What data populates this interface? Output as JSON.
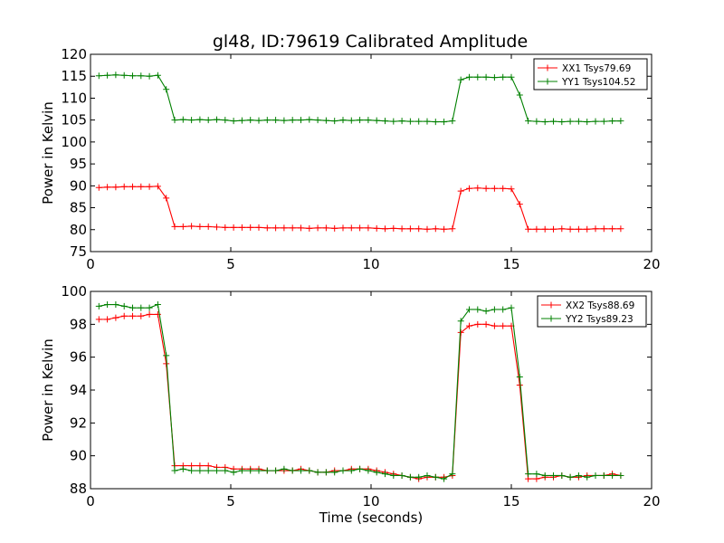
{
  "figure": {
    "title": "gl48, ID:79619 Calibrated Amplitude",
    "xlabel": "Time (seconds)"
  },
  "colors": {
    "red": "#ff0000",
    "green": "#008000"
  },
  "chart_data": [
    {
      "type": "line",
      "ylabel": "Power in Kelvin",
      "xlim": [
        0,
        20
      ],
      "ylim": [
        75,
        120
      ],
      "xticks": [
        0,
        5,
        10,
        15,
        20
      ],
      "yticks": [
        75,
        80,
        85,
        90,
        95,
        100,
        105,
        110,
        115,
        120
      ],
      "grid": false,
      "legend_position": "top-right",
      "x": [
        0.3,
        0.6,
        0.9,
        1.2,
        1.5,
        1.8,
        2.1,
        2.4,
        2.7,
        3.0,
        3.3,
        3.6,
        3.9,
        4.2,
        4.5,
        4.8,
        5.1,
        5.4,
        5.7,
        6.0,
        6.3,
        6.6,
        6.9,
        7.2,
        7.5,
        7.8,
        8.1,
        8.4,
        8.7,
        9.0,
        9.3,
        9.6,
        9.9,
        10.2,
        10.5,
        10.8,
        11.1,
        11.4,
        11.7,
        12.0,
        12.3,
        12.6,
        12.9,
        13.2,
        13.5,
        13.8,
        14.1,
        14.4,
        14.7,
        15.0,
        15.3,
        15.6,
        15.9,
        16.2,
        16.5,
        16.8,
        17.1,
        17.4,
        17.7,
        18.0,
        18.3,
        18.6,
        18.9
      ],
      "series": [
        {
          "name": "XX1 Tsys79.69",
          "color": "#ff0000",
          "values": [
            89.6,
            89.7,
            89.7,
            89.8,
            89.8,
            89.8,
            89.8,
            89.9,
            87.2,
            80.7,
            80.7,
            80.8,
            80.7,
            80.7,
            80.6,
            80.5,
            80.5,
            80.5,
            80.5,
            80.5,
            80.4,
            80.4,
            80.4,
            80.4,
            80.4,
            80.3,
            80.4,
            80.4,
            80.3,
            80.4,
            80.4,
            80.4,
            80.4,
            80.3,
            80.2,
            80.3,
            80.2,
            80.2,
            80.2,
            80.1,
            80.2,
            80.1,
            80.2,
            88.8,
            89.4,
            89.5,
            89.4,
            89.4,
            89.4,
            89.3,
            85.8,
            80.1,
            80.1,
            80.1,
            80.1,
            80.2,
            80.1,
            80.1,
            80.1,
            80.2,
            80.2,
            80.2,
            80.2
          ]
        },
        {
          "name": "YY1 Tsys104.52",
          "color": "#008000",
          "values": [
            115.1,
            115.2,
            115.3,
            115.2,
            115.1,
            115.1,
            115.0,
            115.2,
            112.0,
            105.0,
            105.1,
            105.0,
            105.1,
            105.0,
            105.1,
            105.0,
            104.8,
            104.9,
            105.0,
            104.9,
            105.0,
            105.0,
            104.9,
            105.0,
            105.0,
            105.1,
            105.0,
            104.9,
            104.8,
            105.0,
            104.9,
            105.0,
            105.0,
            104.9,
            104.8,
            104.7,
            104.8,
            104.7,
            104.7,
            104.7,
            104.6,
            104.6,
            104.8,
            114.2,
            114.8,
            114.8,
            114.8,
            114.7,
            114.8,
            114.8,
            110.7,
            104.8,
            104.7,
            104.6,
            104.7,
            104.6,
            104.7,
            104.7,
            104.6,
            104.7,
            104.7,
            104.8,
            104.8
          ]
        }
      ]
    },
    {
      "type": "line",
      "ylabel": "Power in Kelvin",
      "xlabel": "Time (seconds)",
      "xlim": [
        0,
        20
      ],
      "ylim": [
        88,
        100
      ],
      "xticks": [
        0,
        5,
        10,
        15,
        20
      ],
      "yticks": [
        88,
        90,
        92,
        94,
        96,
        98,
        100
      ],
      "grid": false,
      "legend_position": "top-right",
      "x": [
        0.3,
        0.6,
        0.9,
        1.2,
        1.5,
        1.8,
        2.1,
        2.4,
        2.7,
        3.0,
        3.3,
        3.6,
        3.9,
        4.2,
        4.5,
        4.8,
        5.1,
        5.4,
        5.7,
        6.0,
        6.3,
        6.6,
        6.9,
        7.2,
        7.5,
        7.8,
        8.1,
        8.4,
        8.7,
        9.0,
        9.3,
        9.6,
        9.9,
        10.2,
        10.5,
        10.8,
        11.1,
        11.4,
        11.7,
        12.0,
        12.3,
        12.6,
        12.9,
        13.2,
        13.5,
        13.8,
        14.1,
        14.4,
        14.7,
        15.0,
        15.3,
        15.6,
        15.9,
        16.2,
        16.5,
        16.8,
        17.1,
        17.4,
        17.7,
        18.0,
        18.3,
        18.6,
        18.9
      ],
      "series": [
        {
          "name": "XX2 Tsys88.69",
          "color": "#ff0000",
          "values": [
            98.3,
            98.3,
            98.4,
            98.5,
            98.5,
            98.5,
            98.6,
            98.6,
            95.6,
            89.4,
            89.4,
            89.4,
            89.4,
            89.4,
            89.3,
            89.3,
            89.2,
            89.2,
            89.2,
            89.2,
            89.1,
            89.1,
            89.1,
            89.1,
            89.2,
            89.1,
            89.0,
            89.0,
            89.1,
            89.1,
            89.2,
            89.2,
            89.2,
            89.1,
            89.0,
            88.9,
            88.8,
            88.7,
            88.6,
            88.7,
            88.7,
            88.7,
            88.8,
            97.5,
            97.9,
            98.0,
            98.0,
            97.9,
            97.9,
            97.9,
            94.3,
            88.6,
            88.6,
            88.7,
            88.7,
            88.8,
            88.7,
            88.7,
            88.8,
            88.8,
            88.8,
            88.9,
            88.8
          ]
        },
        {
          "name": "YY2 Tsys89.23",
          "color": "#008000",
          "values": [
            99.1,
            99.2,
            99.2,
            99.1,
            99.0,
            99.0,
            99.0,
            99.2,
            96.1,
            89.1,
            89.2,
            89.1,
            89.1,
            89.1,
            89.1,
            89.1,
            89.0,
            89.1,
            89.1,
            89.1,
            89.1,
            89.1,
            89.2,
            89.1,
            89.1,
            89.1,
            89.0,
            89.0,
            89.0,
            89.1,
            89.1,
            89.2,
            89.1,
            89.0,
            88.9,
            88.8,
            88.8,
            88.7,
            88.7,
            88.8,
            88.7,
            88.6,
            88.9,
            98.2,
            98.9,
            98.9,
            98.8,
            98.9,
            98.9,
            99.0,
            94.8,
            88.9,
            88.9,
            88.8,
            88.8,
            88.8,
            88.7,
            88.8,
            88.7,
            88.8,
            88.8,
            88.8,
            88.8
          ]
        }
      ]
    }
  ]
}
